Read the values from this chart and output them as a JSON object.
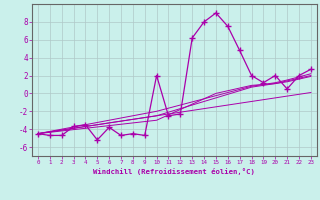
{
  "xlabel": "Windchill (Refroidissement éolien,°C)",
  "background_color": "#caf0eb",
  "grid_color": "#b0c8c8",
  "line_color": "#aa00aa",
  "x_values": [
    0,
    1,
    2,
    3,
    4,
    5,
    6,
    7,
    8,
    9,
    10,
    11,
    12,
    13,
    14,
    15,
    16,
    17,
    18,
    19,
    20,
    21,
    22,
    23
  ],
  "y_main": [
    -4.5,
    -4.7,
    -4.7,
    -3.7,
    -3.5,
    -5.2,
    -3.8,
    -4.7,
    -4.5,
    -4.7,
    2.0,
    -2.5,
    -2.3,
    6.2,
    8.0,
    9.0,
    7.5,
    4.8,
    2.0,
    1.2,
    2.0,
    0.5,
    2.0,
    2.7
  ],
  "y_line1": [
    -4.5,
    -4.3,
    -4.1,
    -3.9,
    -3.7,
    -3.5,
    -3.3,
    -3.1,
    -2.9,
    -2.7,
    -2.5,
    -2.3,
    -2.1,
    -1.9,
    -1.7,
    -1.5,
    -1.3,
    -1.1,
    -0.9,
    -0.7,
    -0.5,
    -0.3,
    -0.1,
    0.1
  ],
  "y_line2": [
    -4.5,
    -4.35,
    -4.2,
    -4.05,
    -3.9,
    -3.75,
    -3.6,
    -3.45,
    -3.3,
    -3.15,
    -3.0,
    -2.4,
    -1.8,
    -1.2,
    -0.6,
    0.0,
    0.3,
    0.6,
    0.9,
    1.0,
    1.1,
    1.3,
    1.6,
    1.9
  ],
  "y_line3": [
    -4.5,
    -4.3,
    -4.1,
    -3.9,
    -3.7,
    -3.5,
    -3.3,
    -3.1,
    -2.9,
    -2.7,
    -2.5,
    -2.1,
    -1.7,
    -1.3,
    -0.9,
    -0.5,
    -0.1,
    0.3,
    0.7,
    0.9,
    1.1,
    1.4,
    1.7,
    2.0
  ],
  "y_line4": [
    -4.5,
    -4.25,
    -4.0,
    -3.75,
    -3.5,
    -3.25,
    -3.0,
    -2.75,
    -2.5,
    -2.25,
    -2.0,
    -1.65,
    -1.3,
    -0.95,
    -0.6,
    -0.25,
    0.1,
    0.45,
    0.8,
    1.0,
    1.2,
    1.5,
    1.85,
    2.2
  ],
  "ylim": [
    -7,
    10
  ],
  "xlim": [
    -0.5,
    23.5
  ],
  "yticks": [
    -6,
    -4,
    -2,
    0,
    2,
    4,
    6,
    8
  ],
  "xticks": [
    0,
    1,
    2,
    3,
    4,
    5,
    6,
    7,
    8,
    9,
    10,
    11,
    12,
    13,
    14,
    15,
    16,
    17,
    18,
    19,
    20,
    21,
    22,
    23
  ]
}
